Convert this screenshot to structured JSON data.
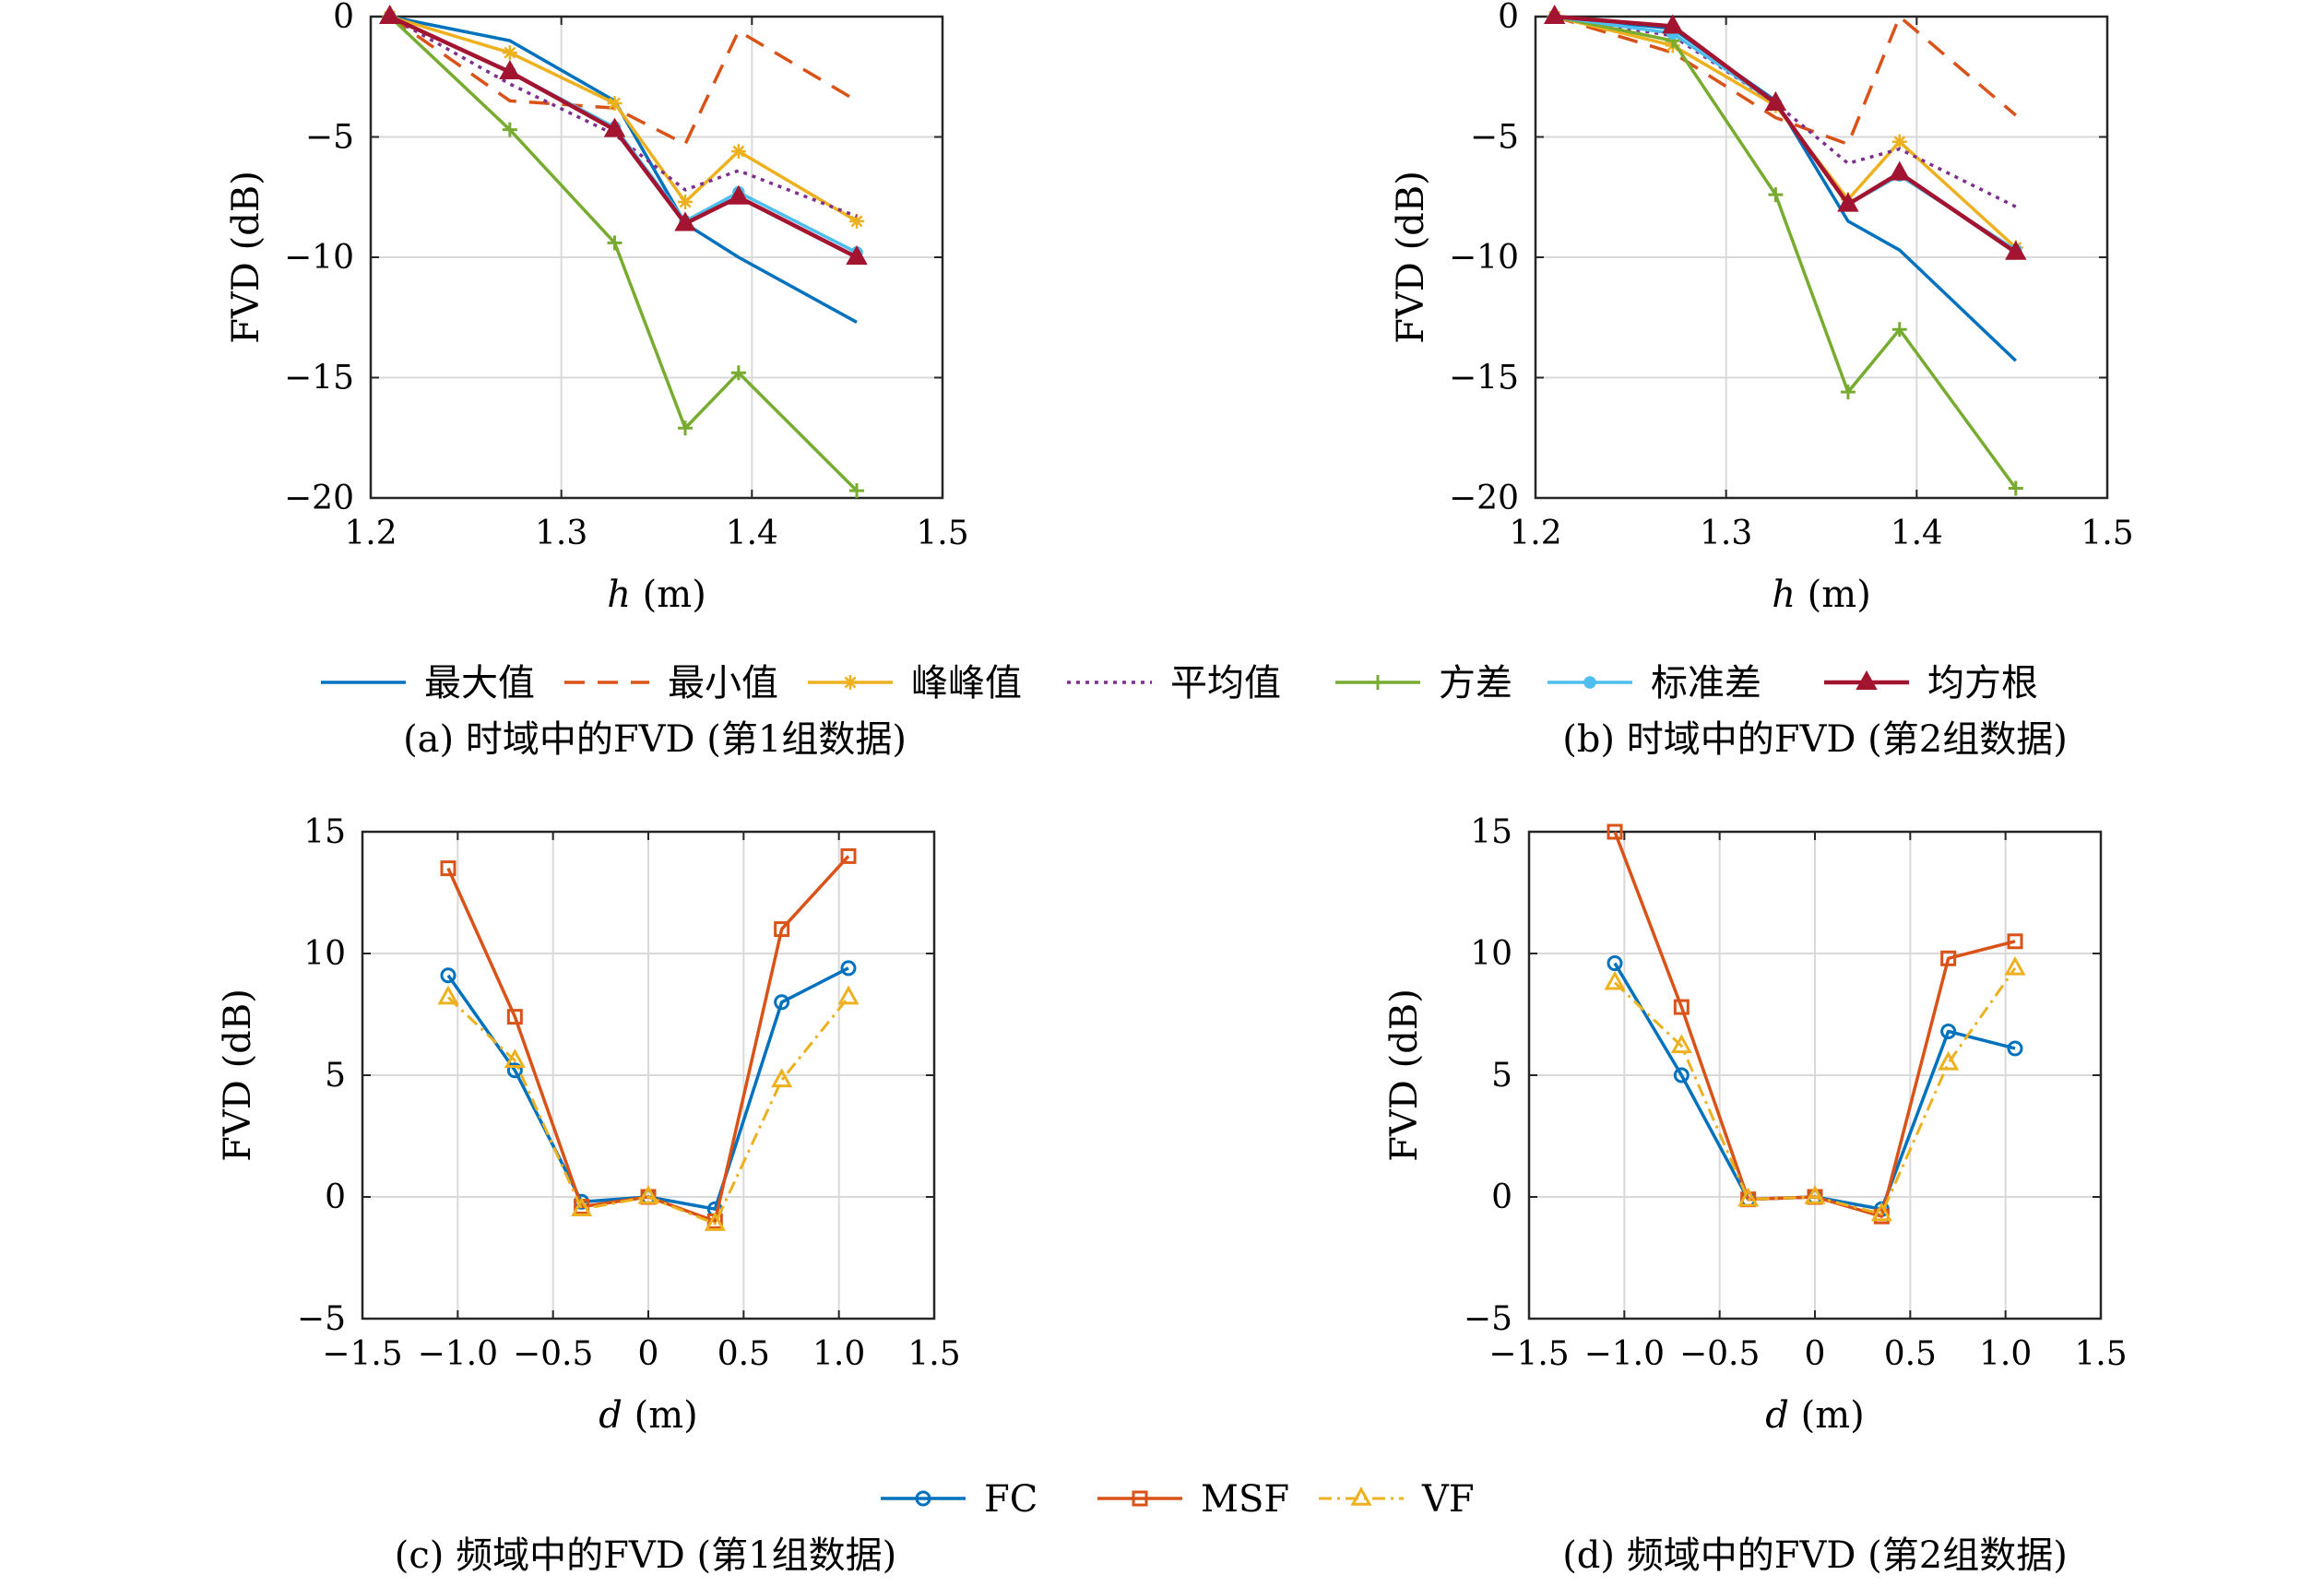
{
  "colors": {
    "blue": "#0072BD",
    "orange": "#D95319",
    "yellow": "#EDB120",
    "purple": "#7E2F8E",
    "green": "#77AC30",
    "cyan": "#4DBEEE",
    "darkred": "#A2142F",
    "grid": "#d9d9d9",
    "axis": "#262626"
  },
  "legend_top": {
    "entries": [
      "最大值",
      "最小值",
      "峰峰值",
      "平均值",
      "方差",
      "标准差",
      "均方根"
    ],
    "icons": [
      "solid-line-icon",
      "dashed-line-icon",
      "star-line-icon",
      "dotted-line-icon",
      "plus-line-icon",
      "dot-line-icon",
      "triangle-line-icon"
    ]
  },
  "legend_bottom": {
    "entries": [
      "FC",
      "MSF",
      "VF"
    ],
    "icons": [
      "circle-line-icon",
      "square-line-icon",
      "triangle-dashdot-line-icon"
    ]
  },
  "chart_data": [
    {
      "type": "line",
      "caption": "(a) 时域中的FVD (第1组数据)",
      "xlabel_var": "h",
      "xlabel_unit": " (m)",
      "ylabel": "FVD (dB)",
      "xlim": [
        1.2,
        1.5
      ],
      "ylim": [
        -20,
        0
      ],
      "xticks": [
        1.2,
        1.3,
        1.4,
        1.5
      ],
      "xtick_labels": [
        "1.2",
        "1.3",
        "1.4",
        "1.5"
      ],
      "yticks": [
        0,
        -5,
        -10,
        -15,
        -20
      ],
      "ytick_labels": [
        "0",
        "−5",
        "−10",
        "−15",
        "−20"
      ],
      "grid": true,
      "x": [
        1.21,
        1.273,
        1.328,
        1.365,
        1.393,
        1.455
      ],
      "series": [
        {
          "name": "最大值",
          "values": [
            0,
            -1.0,
            -3.5,
            -8.6,
            -10.0,
            -12.7
          ]
        },
        {
          "name": "最小值",
          "values": [
            0,
            -3.5,
            -3.8,
            -5.3,
            -0.6,
            -3.5
          ]
        },
        {
          "name": "峰峰值",
          "values": [
            0,
            -1.5,
            -3.6,
            -7.7,
            -5.6,
            -8.5
          ]
        },
        {
          "name": "平均值",
          "values": [
            0,
            -2.8,
            -4.9,
            -7.2,
            -6.4,
            -8.3
          ]
        },
        {
          "name": "方差",
          "values": [
            0,
            -4.7,
            -9.4,
            -17.1,
            -14.8,
            -19.7
          ]
        },
        {
          "name": "标准差",
          "values": [
            0,
            -2.3,
            -4.6,
            -8.5,
            -7.3,
            -9.8
          ]
        },
        {
          "name": "均方根",
          "values": [
            0,
            -2.3,
            -4.7,
            -8.6,
            -7.5,
            -10.0
          ]
        }
      ]
    },
    {
      "type": "line",
      "caption": "(b) 时域中的FVD (第2组数据)",
      "xlabel_var": "h",
      "xlabel_unit": " (m)",
      "ylabel": "FVD (dB)",
      "xlim": [
        1.2,
        1.5
      ],
      "ylim": [
        -20,
        0
      ],
      "xticks": [
        1.2,
        1.3,
        1.4,
        1.5
      ],
      "xtick_labels": [
        "1.2",
        "1.3",
        "1.4",
        "1.5"
      ],
      "yticks": [
        0,
        -5,
        -10,
        -15,
        -20
      ],
      "ytick_labels": [
        "0",
        "−5",
        "−10",
        "−15",
        "−20"
      ],
      "grid": true,
      "x": [
        1.21,
        1.272,
        1.326,
        1.364,
        1.391,
        1.452
      ],
      "series": [
        {
          "name": "最大值",
          "values": [
            0,
            -0.5,
            -3.5,
            -8.5,
            -9.7,
            -14.3
          ]
        },
        {
          "name": "最小值",
          "values": [
            0,
            -1.5,
            -4.2,
            -5.3,
            0.0,
            -4.1
          ]
        },
        {
          "name": "峰峰值",
          "values": [
            0,
            -1.2,
            -3.7,
            -7.6,
            -5.2,
            -9.6
          ]
        },
        {
          "name": "平均值",
          "values": [
            0,
            -0.8,
            -3.6,
            -6.1,
            -5.5,
            -7.9
          ]
        },
        {
          "name": "方差",
          "values": [
            0,
            -1.0,
            -7.4,
            -15.6,
            -13.0,
            -19.6
          ]
        },
        {
          "name": "标准差",
          "values": [
            0,
            -0.7,
            -3.6,
            -7.8,
            -6.6,
            -9.7
          ]
        },
        {
          "name": "均方根",
          "values": [
            0,
            -0.4,
            -3.6,
            -7.8,
            -6.5,
            -9.8
          ]
        }
      ]
    },
    {
      "type": "line",
      "caption": "(c) 频域中的FVD (第1组数据)",
      "xlabel_var": "d",
      "xlabel_unit": " (m)",
      "ylabel": "FVD (dB)",
      "xlim": [
        -1.5,
        1.5
      ],
      "ylim": [
        -5,
        15
      ],
      "xticks": [
        -1.5,
        -1.0,
        -0.5,
        0,
        0.5,
        1.0,
        1.5
      ],
      "xtick_labels": [
        "−1.5",
        "−1.0",
        "−0.5",
        "0",
        "0.5",
        "1.0",
        "1.5"
      ],
      "yticks": [
        15,
        10,
        5,
        0,
        -5
      ],
      "ytick_labels": [
        "15",
        "10",
        "5",
        "0",
        "−5"
      ],
      "grid": true,
      "x": [
        -1.05,
        -0.7,
        -0.35,
        0,
        0.35,
        0.7,
        1.05
      ],
      "series": [
        {
          "name": "FC",
          "values": [
            9.1,
            5.2,
            -0.2,
            0,
            -0.5,
            8.0,
            9.4
          ]
        },
        {
          "name": "MSF",
          "values": [
            13.5,
            7.4,
            -0.4,
            0,
            -1.0,
            11.0,
            14.0
          ]
        },
        {
          "name": "VF",
          "values": [
            8.2,
            5.6,
            -0.5,
            0,
            -1.1,
            4.8,
            8.2
          ]
        }
      ]
    },
    {
      "type": "line",
      "caption": "(d) 频域中的FVD (第2组数据)",
      "xlabel_var": "d",
      "xlabel_unit": " (m)",
      "ylabel": "FVD (dB)",
      "xlim": [
        -1.5,
        1.5
      ],
      "ylim": [
        -5,
        15
      ],
      "xticks": [
        -1.5,
        -1.0,
        -0.5,
        0,
        0.5,
        1.0,
        1.5
      ],
      "xtick_labels": [
        "−1.5",
        "−1.0",
        "−0.5",
        "0",
        "0.5",
        "1.0",
        "1.5"
      ],
      "yticks": [
        15,
        10,
        5,
        0,
        -5
      ],
      "ytick_labels": [
        "15",
        "10",
        "5",
        "0",
        "−5"
      ],
      "grid": true,
      "x": [
        -1.05,
        -0.7,
        -0.35,
        0,
        0.35,
        0.7,
        1.05
      ],
      "series": [
        {
          "name": "FC",
          "values": [
            9.6,
            5.0,
            -0.1,
            0,
            -0.5,
            6.8,
            6.1
          ]
        },
        {
          "name": "MSF",
          "values": [
            15.0,
            7.8,
            -0.1,
            0,
            -0.8,
            9.8,
            10.5
          ]
        },
        {
          "name": "VF",
          "values": [
            8.8,
            6.2,
            -0.1,
            0,
            -0.7,
            5.5,
            9.4
          ]
        }
      ]
    }
  ]
}
